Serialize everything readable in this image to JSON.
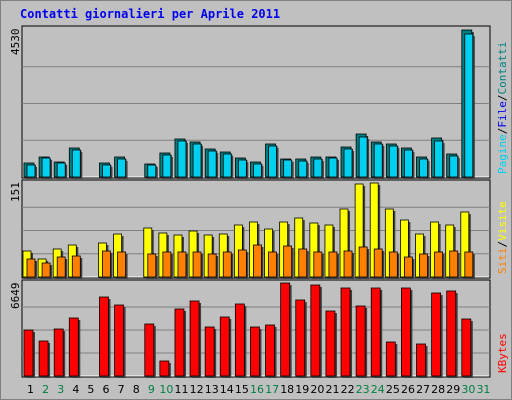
{
  "title": "Contatti giornalieri per Aprile 2011",
  "colors": {
    "background": "#c0c0c0",
    "panel": "#c0c0c0",
    "gridline": "#808080",
    "pages": "#00d0f0",
    "files": "#00a0a0",
    "visits": "#ffff00",
    "sites": "#ff8000",
    "kbytes": "#ff0000",
    "weekend_label": "#008040",
    "weekday_label": "#000000"
  },
  "chart_data": {
    "type": "bar",
    "categories": [
      "1",
      "2",
      "3",
      "4",
      "5",
      "6",
      "7",
      "8",
      "9",
      "10",
      "11",
      "12",
      "13",
      "14",
      "15",
      "16",
      "17",
      "18",
      "19",
      "20",
      "21",
      "22",
      "23",
      "24",
      "25",
      "26",
      "27",
      "28",
      "29",
      "30",
      "31"
    ],
    "weekend_days": [
      "2",
      "3",
      "9",
      "10",
      "16",
      "17",
      "23",
      "24",
      "30",
      "31"
    ],
    "panels": [
      {
        "max_label": "4530",
        "ylim": [
          0,
          4530
        ],
        "legend": [
          {
            "text": "Pagine",
            "color": "#00d0f0"
          },
          {
            "text": "/",
            "color": "#000000"
          },
          {
            "text": "File",
            "color": "#0000ee"
          },
          {
            "text": "/",
            "color": "#000000"
          },
          {
            "text": "Contatti",
            "color": "#008080"
          }
        ],
        "series": [
          {
            "name": "Contatti",
            "color": "#008080",
            "values": [
              420,
              620,
              470,
              880,
              0,
              420,
              620,
              0,
              410,
              740,
              1180,
              1090,
              850,
              760,
              580,
              450,
              1010,
              560,
              550,
              610,
              630,
              910,
              1320,
              1090,
              1030,
              880,
              630,
              1200,
              700,
              4530,
              0
            ]
          },
          {
            "name": "Pagine",
            "color": "#00d0f0",
            "values": [
              380,
              580,
              440,
              820,
              0,
              380,
              560,
              0,
              370,
              680,
              1110,
              1020,
              800,
              700,
              530,
              400,
              950,
              510,
              500,
              550,
              580,
              860,
              1240,
              1020,
              960,
              820,
              570,
              1120,
              640,
              4400,
              0
            ]
          }
        ]
      },
      {
        "max_label": "151",
        "ylim": [
          0,
          151
        ],
        "legend": [
          {
            "text": "Siti",
            "color": "#ff8000"
          },
          {
            "text": "/",
            "color": "#000000"
          },
          {
            "text": "Visite",
            "color": "#ffff00"
          }
        ],
        "series": [
          {
            "name": "Visite",
            "color": "#ffff00",
            "values": [
              42,
              30,
              45,
              52,
              0,
              55,
              70,
              0,
              80,
              72,
              68,
              75,
              68,
              70,
              85,
              90,
              78,
              90,
              95,
              87,
              85,
              111,
              151,
              152,
              110,
              92,
              70,
              90,
              85,
              105,
              0
            ]
          },
          {
            "name": "Siti",
            "color": "#ff8000",
            "values": [
              30,
              22,
              32,
              34,
              0,
              42,
              40,
              0,
              38,
              40,
              40,
              40,
              38,
              40,
              44,
              52,
              40,
              50,
              45,
              40,
              40,
              42,
              48,
              46,
              40,
              32,
              38,
              40,
              42,
              40,
              0
            ]
          }
        ]
      },
      {
        "max_label": "6649",
        "ylim": [
          0,
          6649
        ],
        "legend": [
          {
            "text": "KBytes",
            "color": "#ff0000"
          }
        ],
        "series": [
          {
            "name": "KBytes",
            "color": "#ff0000",
            "values": [
              3350,
              2520,
              3410,
              4200,
              0,
              5720,
              5160,
              0,
              3770,
              1050,
              4820,
              5390,
              3570,
              4260,
              5200,
              3540,
              3680,
              6690,
              5470,
              6600,
              4680,
              6360,
              5040,
              6370,
              2470,
              6380,
              2300,
              5980,
              6140,
              4120,
              0
            ]
          }
        ]
      }
    ]
  }
}
